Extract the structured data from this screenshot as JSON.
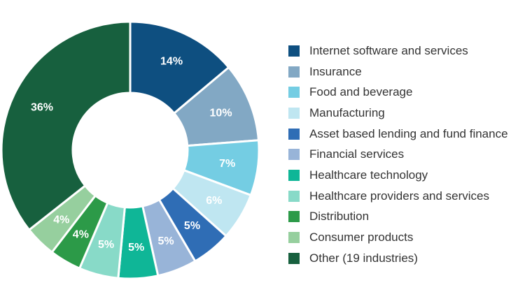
{
  "chart_data": {
    "type": "pie",
    "variant": "donut",
    "title": "",
    "legend_position": "right",
    "slices": [
      {
        "label": "Internet software and services",
        "value": 14,
        "display": "14%",
        "color": "#0e4f80"
      },
      {
        "label": "Insurance",
        "value": 10,
        "display": "10%",
        "color": "#82a8c4"
      },
      {
        "label": "Food and beverage",
        "value": 7,
        "display": "7%",
        "color": "#74cde3"
      },
      {
        "label": "Manufacturing",
        "value": 6,
        "display": "6%",
        "color": "#bfe6f1"
      },
      {
        "label": "Asset based lending and fund finance",
        "value": 5,
        "display": "5%",
        "color": "#2f6db5"
      },
      {
        "label": "Financial services",
        "value": 5,
        "display": "5%",
        "color": "#98b4d8"
      },
      {
        "label": "Healthcare technology",
        "value": 5,
        "display": "5%",
        "color": "#0fb697"
      },
      {
        "label": "Healthcare providers and services",
        "value": 5,
        "display": "5%",
        "color": "#88dac8"
      },
      {
        "label": "Distribution",
        "value": 4,
        "display": "4%",
        "color": "#2c9a48"
      },
      {
        "label": "Consumer products",
        "value": 4,
        "display": "4%",
        "color": "#96cf9e"
      },
      {
        "label": "Other (19 industries)",
        "value": 36,
        "display": "36%",
        "color": "#17603e"
      }
    ]
  }
}
